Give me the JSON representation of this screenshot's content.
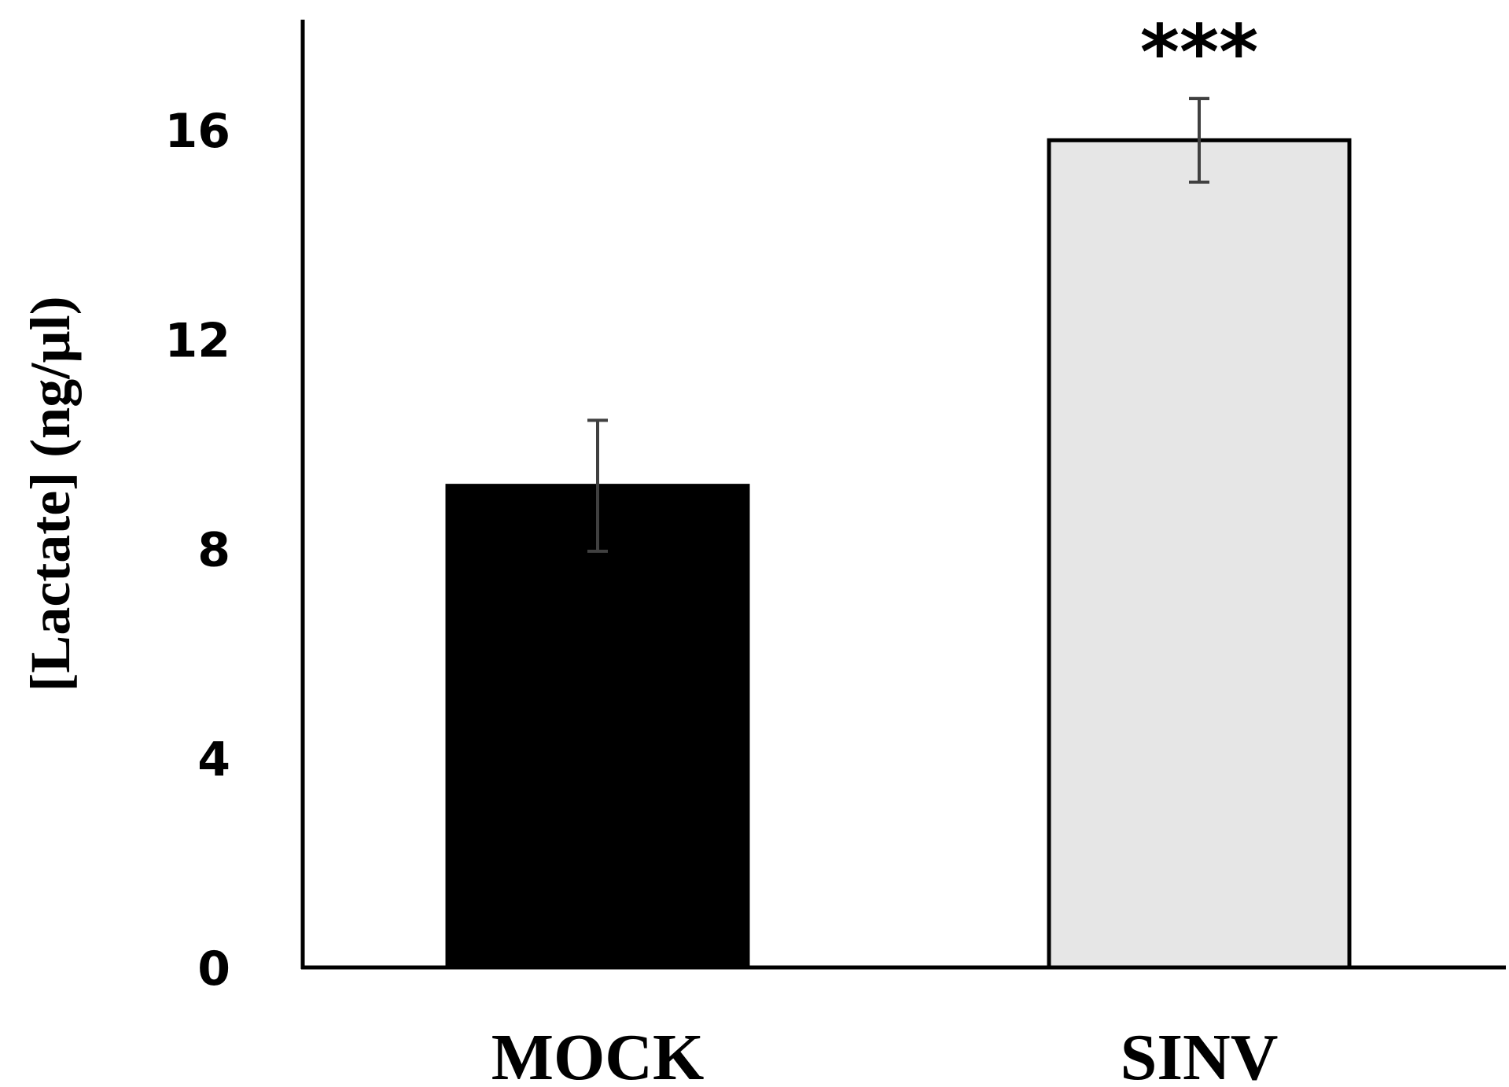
{
  "chart_data": {
    "type": "bar",
    "title": "",
    "xlabel": "",
    "ylabel": "[Lactate] (ng/µl)",
    "ylim": [
      0,
      18
    ],
    "yticks": [
      0,
      4,
      8,
      12,
      16
    ],
    "grid": false,
    "categories": [
      "MOCK",
      "SINV"
    ],
    "values": [
      9.2,
      15.8
    ],
    "errors": [
      1.25,
      0.8
    ],
    "annotations": [
      "",
      "***"
    ],
    "colors": {
      "bars": [
        "#000000",
        "#e6e6e6"
      ],
      "bar_outline": "#000000",
      "error_bar": "#404040",
      "axis": "#000000"
    }
  }
}
